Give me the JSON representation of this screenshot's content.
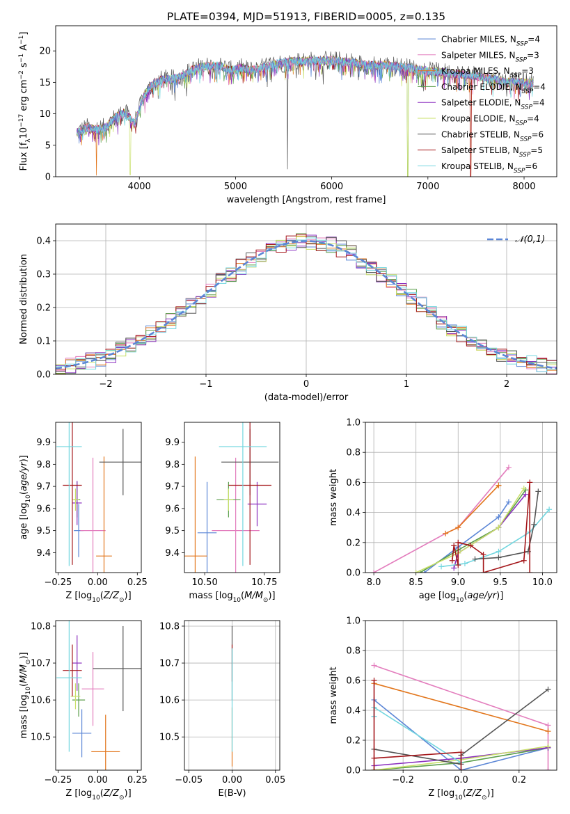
{
  "title": "PLATE=0394, MJD=51913, FIBERID=0005, z=0.135",
  "colors": {
    "chabrier_miles": "#5b86d6",
    "salpeter_miles": "#e37dbd",
    "kroupa_miles": "#e2761c",
    "chabrier_elodie": "#5a9e4a",
    "salpeter_elodie": "#8b2fbf",
    "kroupa_elodie": "#c9e06a",
    "chabrier_stelib": "#555555",
    "salpeter_stelib": "#a4161a",
    "kroupa_stelib": "#72d6df",
    "gauss": "#5b86d6"
  },
  "chart_data": [
    {
      "id": "spectrum",
      "type": "line",
      "xlabel": "wavelength [Angstrom, rest frame]",
      "ylabel": "Flux [f",
      "xlim": [
        3130,
        8340
      ],
      "ylim": [
        0,
        24
      ],
      "xticks": [
        4000,
        5000,
        6000,
        7000,
        8000
      ],
      "yticks": [
        0,
        5,
        10,
        15,
        20
      ],
      "legend_position": "upper-right",
      "x_range": [
        3350,
        8100
      ],
      "envelope": [
        [
          3350,
          7.0
        ],
        [
          3450,
          7.8
        ],
        [
          3550,
          7.5
        ],
        [
          3650,
          7.8
        ],
        [
          3750,
          9.5
        ],
        [
          3850,
          10.2
        ],
        [
          3950,
          8.5
        ],
        [
          4050,
          13.0
        ],
        [
          4150,
          14.8
        ],
        [
          4250,
          15.5
        ],
        [
          4350,
          15.5
        ],
        [
          4450,
          16.0
        ],
        [
          4550,
          17.0
        ],
        [
          4650,
          17.5
        ],
        [
          4750,
          17.6
        ],
        [
          4850,
          17.6
        ],
        [
          4950,
          16.9
        ],
        [
          5050,
          17.3
        ],
        [
          5150,
          16.9
        ],
        [
          5250,
          17.2
        ],
        [
          5400,
          17.9
        ],
        [
          5600,
          18.3
        ],
        [
          5800,
          18.4
        ],
        [
          6000,
          18.5
        ],
        [
          6200,
          18.2
        ],
        [
          6400,
          17.7
        ],
        [
          6600,
          17.7
        ],
        [
          6800,
          17.3
        ],
        [
          7000,
          16.8
        ],
        [
          7200,
          16.5
        ],
        [
          7400,
          16.2
        ],
        [
          7600,
          15.8
        ],
        [
          7800,
          15.1
        ],
        [
          8000,
          15.0
        ],
        [
          8100,
          14.9
        ]
      ],
      "spikes": [
        [
          3555,
          0.2
        ],
        [
          3905,
          0.3
        ],
        [
          5540,
          1.2
        ],
        [
          6790,
          0
        ],
        [
          7445,
          0
        ]
      ],
      "series": [
        {
          "key": "chabrier_miles",
          "label": "Chabrier MILES, N",
          "n": "=4"
        },
        {
          "key": "salpeter_miles",
          "label": "Salpeter MILES, N",
          "n": "=3"
        },
        {
          "key": "kroupa_miles",
          "label": "Kroupa MILES, N",
          "n": "=3"
        },
        {
          "key": "chabrier_elodie",
          "label": "Chabrier ELODIE, N",
          "n": "=4"
        },
        {
          "key": "salpeter_elodie",
          "label": "Salpeter ELODIE, N",
          "n": "=4"
        },
        {
          "key": "kroupa_elodie",
          "label": "Kroupa ELODIE, N",
          "n": "=4"
        },
        {
          "key": "chabrier_stelib",
          "label": "Chabrier STELIB, N",
          "n": "=6"
        },
        {
          "key": "salpeter_stelib",
          "label": "Salpeter STELIB, N",
          "n": "=5"
        },
        {
          "key": "kroupa_stelib",
          "label": "Kroupa STELIB, N",
          "n": "=6"
        }
      ]
    },
    {
      "id": "residuals",
      "type": "histogram",
      "xlabel": "(data-model)/error",
      "ylabel": "Normed distribution",
      "xlim": [
        -2.5,
        2.5
      ],
      "ylim": [
        0,
        0.45
      ],
      "xticks": [
        -2,
        -1,
        0,
        1,
        2
      ],
      "yticks": [
        0.0,
        0.1,
        0.2,
        0.3,
        0.4
      ],
      "bin_width": 0.1,
      "legend": "𝒩(0,1)",
      "legend_position": "upper-right",
      "grid": true
    },
    {
      "id": "age_vs_Z",
      "type": "errorbar",
      "xlabel": "Z [log",
      "ylabel": "age  [log",
      "xlim": [
        -0.265,
        0.275
      ],
      "ylim": [
        9.31,
        9.99
      ],
      "xticks": [
        -0.25,
        0.0,
        0.25
      ],
      "yticks": [
        9.4,
        9.5,
        9.6,
        9.7,
        9.8,
        9.9
      ],
      "points": [
        {
          "key": "chabrier_miles",
          "x": -0.12,
          "xerr": 0.03,
          "y": 9.5,
          "yerr": 0.12
        },
        {
          "key": "salpeter_miles",
          "x": -0.03,
          "xerr": 0.08,
          "y": 9.5,
          "yerr": 0.33
        },
        {
          "key": "kroupa_miles",
          "x": 0.04,
          "xerr": 0.05,
          "y": 9.385,
          "yerr": 0.45
        },
        {
          "key": "chabrier_elodie",
          "x": -0.13,
          "xerr": 0.02,
          "y": 9.64,
          "yerr": 0.08
        },
        {
          "key": "salpeter_elodie",
          "x": -0.13,
          "xerr": 0.03,
          "y": 9.625,
          "yerr": 0.1
        },
        {
          "key": "kroupa_elodie",
          "x": -0.14,
          "xerr": 0.02,
          "y": 9.64,
          "yerr": 0.05
        },
        {
          "key": "chabrier_stelib",
          "x": 0.16,
          "xerr": 0.15,
          "y": 9.81,
          "yerr": 0.15
        },
        {
          "key": "salpeter_stelib",
          "x": -0.16,
          "xerr": 0.06,
          "y": 9.705,
          "yerr": 0.36
        },
        {
          "key": "kroupa_stelib",
          "x": -0.18,
          "xerr": 0.08,
          "y": 9.88,
          "yerr": 0.54
        }
      ]
    },
    {
      "id": "age_vs_mass",
      "type": "errorbar",
      "xlabel": "mass [log",
      "ylabel": "",
      "xlim": [
        10.415,
        10.815
      ],
      "ylim": [
        9.31,
        9.99
      ],
      "xticks": [
        10.5,
        10.75
      ],
      "yticks": [
        9.4,
        9.5,
        9.6,
        9.7,
        9.8,
        9.9
      ],
      "points": [
        {
          "key": "chabrier_miles",
          "x": 10.51,
          "xerr": 0.04,
          "y": 9.49,
          "yerr": 0.23
        },
        {
          "key": "salpeter_miles",
          "x": 10.63,
          "xerr": 0.1,
          "y": 9.5,
          "yerr": 0.33
        },
        {
          "key": "kroupa_miles",
          "x": 10.46,
          "xerr": 0.05,
          "y": 9.385,
          "yerr": 0.45
        },
        {
          "key": "chabrier_elodie",
          "x": 10.6,
          "xerr": 0.05,
          "y": 9.64,
          "yerr": 0.08
        },
        {
          "key": "salpeter_elodie",
          "x": 10.72,
          "xerr": 0.04,
          "y": 9.62,
          "yerr": 0.1
        },
        {
          "key": "kroupa_elodie",
          "x": 10.6,
          "xerr": 0.02,
          "y": 9.64,
          "yerr": 0.05
        },
        {
          "key": "chabrier_stelib",
          "x": 10.69,
          "xerr": 0.12,
          "y": 9.81,
          "yerr": 0.15
        },
        {
          "key": "salpeter_stelib",
          "x": 10.69,
          "xerr": 0.09,
          "y": 9.705,
          "yerr": 0.36
        },
        {
          "key": "kroupa_stelib",
          "x": 10.66,
          "xerr": 0.1,
          "y": 9.88,
          "yerr": 0.54
        }
      ]
    },
    {
      "id": "weight_vs_age",
      "type": "line",
      "xlabel": "age  [log",
      "ylabel": "mass weight",
      "xlim": [
        7.9,
        10.17
      ],
      "ylim": [
        0,
        1
      ],
      "xticks": [
        8.0,
        8.5,
        9.0,
        9.5,
        10.0
      ],
      "yticks": [
        0.0,
        0.2,
        0.4,
        0.6,
        0.8,
        1.0
      ],
      "grid": true,
      "series": [
        {
          "key": "salpeter_miles",
          "x": [
            8.0,
            8.85,
            9.0,
            9.6
          ],
          "y": [
            0.0,
            0.26,
            0.3,
            0.7
          ]
        },
        {
          "key": "kroupa_miles",
          "x": [
            8.85,
            9.0,
            9.48,
            9.48
          ],
          "y": [
            0.26,
            0.3,
            0.58,
            0.58
          ]
        },
        {
          "key": "chabrier_miles",
          "x": [
            8.6,
            9.0,
            9.48,
            9.6
          ],
          "y": [
            0.0,
            0.17,
            0.37,
            0.47
          ]
        },
        {
          "key": "chabrier_elodie",
          "x": [
            8.55,
            9.0,
            9.48,
            9.8
          ],
          "y": [
            0.0,
            0.15,
            0.3,
            0.55
          ]
        },
        {
          "key": "salpeter_elodie",
          "x": [
            8.95,
            9.0,
            9.48,
            9.8
          ],
          "y": [
            0.03,
            0.13,
            0.3,
            0.52
          ]
        },
        {
          "key": "kroupa_elodie",
          "x": [
            8.5,
            9.0,
            9.48,
            9.78
          ],
          "y": [
            0.0,
            0.13,
            0.3,
            0.56
          ]
        },
        {
          "key": "kroupa_stelib",
          "x": [
            8.8,
            9.08,
            9.48,
            9.85,
            10.08
          ],
          "y": [
            0.04,
            0.06,
            0.14,
            0.27,
            0.42
          ]
        },
        {
          "key": "chabrier_stelib",
          "x": [
            9.2,
            9.48,
            9.83,
            9.9,
            9.95
          ],
          "y": [
            0.09,
            0.1,
            0.14,
            0.32,
            0.54
          ]
        },
        {
          "key": "salpeter_stelib",
          "x": [
            8.93,
            8.95,
            9.0,
            9.0,
            9.15,
            9.3,
            9.3,
            9.78,
            9.85,
            9.85
          ],
          "y": [
            0.08,
            0.18,
            0.05,
            0.2,
            0.18,
            0.12,
            0.0,
            0.08,
            0.6,
            0.0
          ]
        }
      ]
    },
    {
      "id": "mass_vs_Z",
      "type": "errorbar",
      "xlabel": "Z [log",
      "ylabel": "mass [log",
      "xlim": [
        -0.265,
        0.275
      ],
      "ylim": [
        10.41,
        10.815
      ],
      "xticks": [
        -0.25,
        0.0,
        0.25
      ],
      "yticks": [
        10.5,
        10.6,
        10.7,
        10.8
      ],
      "points": [
        {
          "key": "chabrier_miles",
          "x": -0.1,
          "xerr": 0.06,
          "y": 10.51,
          "yerr": 0.065
        },
        {
          "key": "salpeter_miles",
          "x": -0.03,
          "xerr": 0.07,
          "y": 10.63,
          "yerr": 0.1
        },
        {
          "key": "kroupa_miles",
          "x": 0.05,
          "xerr": 0.09,
          "y": 10.46,
          "yerr": 0.1
        },
        {
          "key": "chabrier_elodie",
          "x": -0.12,
          "xerr": 0.04,
          "y": 10.6,
          "yerr": 0.045
        },
        {
          "key": "salpeter_elodie",
          "x": -0.13,
          "xerr": 0.03,
          "y": 10.7,
          "yerr": 0.075
        },
        {
          "key": "kroupa_elodie",
          "x": -0.14,
          "xerr": 0.03,
          "y": 10.61,
          "yerr": 0.035
        },
        {
          "key": "chabrier_stelib",
          "x": 0.16,
          "xerr": 0.19,
          "y": 10.685,
          "yerr": 0.115
        },
        {
          "key": "salpeter_stelib",
          "x": -0.16,
          "xerr": 0.06,
          "y": 10.68,
          "yerr": 0.07
        },
        {
          "key": "kroupa_stelib",
          "x": -0.18,
          "xerr": 0.08,
          "y": 10.66,
          "yerr": 0.2
        }
      ]
    },
    {
      "id": "mass_vs_ebv",
      "type": "errorbar",
      "xlabel": "E(B-V)",
      "ylabel": "",
      "xlim": [
        -0.055,
        0.055
      ],
      "ylim": [
        10.41,
        10.815
      ],
      "xticks": [
        -0.05,
        0.0,
        0.05
      ],
      "yticks": [
        10.5,
        10.6,
        10.7,
        10.8
      ],
      "grid": true,
      "points": [
        {
          "key": "chabrier_stelib",
          "x": 0,
          "xerr": 0,
          "y": 10.7,
          "yerr": 0.1
        },
        {
          "key": "salpeter_stelib",
          "x": 0,
          "xerr": 0,
          "y": 10.7,
          "yerr": 0.05
        },
        {
          "key": "kroupa_miles",
          "x": 0,
          "xerr": 0,
          "y": 10.5,
          "yerr": 0.08
        },
        {
          "key": "kroupa_stelib",
          "x": 0,
          "xerr": 0,
          "y": 10.6,
          "yerr": 0.14
        }
      ]
    },
    {
      "id": "weight_vs_Z",
      "type": "line",
      "xlabel": "Z [log",
      "ylabel": "mass weight",
      "xlim": [
        -0.33,
        0.33
      ],
      "ylim": [
        0,
        1
      ],
      "xticks": [
        -0.2,
        0.0,
        0.2
      ],
      "yticks": [
        0.0,
        0.2,
        0.4,
        0.6,
        0.8,
        1.0
      ],
      "grid": true,
      "series": [
        {
          "key": "salpeter_miles",
          "x": [
            -0.3,
            0.3,
            0.3
          ],
          "y": [
            0.7,
            0.3,
            0.0
          ]
        },
        {
          "key": "kroupa_miles",
          "x": [
            -0.3,
            0.3
          ],
          "y": [
            0.58,
            0.26
          ]
        },
        {
          "key": "chabrier_miles",
          "x": [
            -0.3,
            -0.3,
            0.0,
            0.3
          ],
          "y": [
            0.36,
            0.47,
            0.0,
            0.15
          ]
        },
        {
          "key": "chabrier_elodie",
          "x": [
            -0.3,
            0.0,
            0.3
          ],
          "y": [
            0.0,
            0.05,
            0.15
          ]
        },
        {
          "key": "salpeter_elodie",
          "x": [
            -0.3,
            0.0,
            0.3
          ],
          "y": [
            0.03,
            0.08,
            0.15
          ]
        },
        {
          "key": "kroupa_elodie",
          "x": [
            -0.3,
            0.0,
            0.3
          ],
          "y": [
            0.0,
            0.07,
            0.16
          ]
        },
        {
          "key": "kroupa_stelib",
          "x": [
            -0.3,
            -0.3,
            0.0,
            0.0
          ],
          "y": [
            0.36,
            0.42,
            0.05,
            0.12
          ]
        },
        {
          "key": "chabrier_stelib",
          "x": [
            -0.3,
            0.0,
            0.0,
            0.3
          ],
          "y": [
            0.14,
            0.04,
            0.1,
            0.54
          ]
        },
        {
          "key": "salpeter_stelib",
          "x": [
            -0.3,
            -0.3,
            -0.3,
            0.0,
            0.0
          ],
          "y": [
            0.6,
            0.0,
            0.08,
            0.12,
            0.0
          ]
        }
      ]
    }
  ]
}
